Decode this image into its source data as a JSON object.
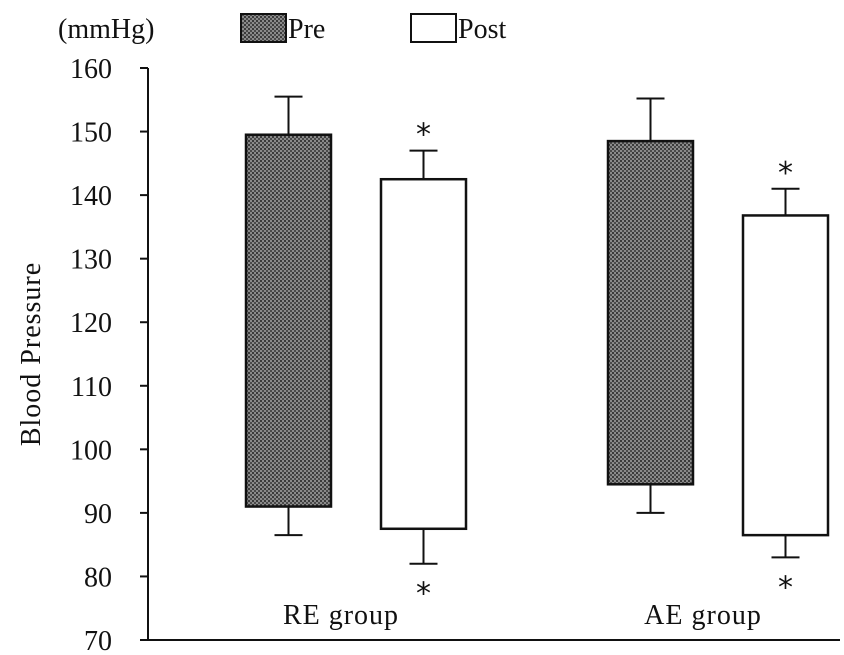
{
  "chart_data": {
    "type": "bar",
    "ylabel": "Blood Pressure",
    "unit_label": "(mmHg)",
    "ylim": [
      70,
      160
    ],
    "yticks": [
      70,
      80,
      90,
      100,
      110,
      120,
      130,
      140,
      150,
      160
    ],
    "categories": [
      "RE group",
      "AE group"
    ],
    "legend": [
      {
        "name": "Pre",
        "color": "#555555",
        "hatched": true
      },
      {
        "name": "Post",
        "color": "#ffffff",
        "hatched": false
      }
    ],
    "legend_position": "top",
    "grid": false,
    "series": [
      {
        "name": "Pre",
        "ranges": [
          [
            91,
            149.5
          ],
          [
            94.5,
            148.5
          ]
        ],
        "error_high": [
          155.5,
          155.2
        ],
        "error_low": [
          86.5,
          90
        ]
      },
      {
        "name": "Post",
        "ranges": [
          [
            87.5,
            142.5
          ],
          [
            86.5,
            136.8
          ]
        ],
        "error_high": [
          147,
          141
        ],
        "error_low": [
          82,
          83
        ]
      }
    ],
    "significance_marker": "*",
    "significance": [
      {
        "category": "RE group",
        "series": "Post",
        "positions": [
          "above",
          "below"
        ]
      },
      {
        "category": "AE group",
        "series": "Post",
        "positions": [
          "above",
          "below"
        ]
      }
    ]
  }
}
